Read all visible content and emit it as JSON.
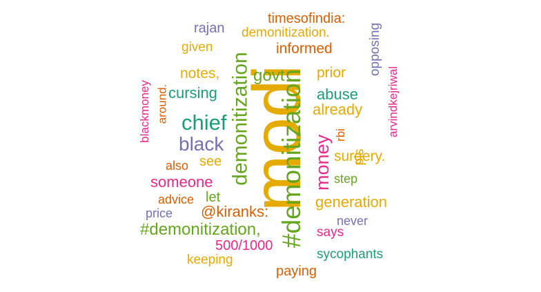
{
  "palette": {
    "teal": "#1b9e77",
    "orange": "#d95f02",
    "purple": "#7570b3",
    "pink": "#e7298a",
    "green": "#66a61e",
    "gold": "#e6ab02"
  },
  "words": [
    {
      "text": "modi",
      "color": "#e6ab02"
    },
    {
      "text": "#demonitization",
      "color": "#66a61e"
    },
    {
      "text": "demonitization",
      "color": "#66a61e"
    },
    {
      "text": "chief",
      "color": "#1b9e77"
    },
    {
      "text": "black",
      "color": "#7570b3"
    },
    {
      "text": "money",
      "color": "#e7298a"
    },
    {
      "text": "#demonitization,",
      "color": "#66a61e"
    },
    {
      "text": "@kiranks:",
      "color": "#d95f02"
    },
    {
      "text": "govt",
      "color": "#66a61e"
    },
    {
      "text": "cursing",
      "color": "#1b9e77"
    },
    {
      "text": "abuse",
      "color": "#1b9e77"
    },
    {
      "text": "already",
      "color": "#e6ab02"
    },
    {
      "text": "someone",
      "color": "#e7298a"
    },
    {
      "text": "generation",
      "color": "#e6ab02"
    },
    {
      "text": "500/1000",
      "color": "#e7298a"
    },
    {
      "text": "informed",
      "color": "#d95f02"
    },
    {
      "text": "prior",
      "color": "#e6ab02"
    },
    {
      "text": "notes,",
      "color": "#e6ab02"
    },
    {
      "text": "timesofindia:",
      "color": "#d95f02"
    },
    {
      "text": "demonitization.",
      "color": "#e6ab02"
    },
    {
      "text": "rajan",
      "color": "#7570b3"
    },
    {
      "text": "given",
      "color": "#e6ab02"
    },
    {
      "text": "opposing",
      "color": "#7570b3"
    },
    {
      "text": "arvindkejriwal",
      "color": "#e7298a"
    },
    {
      "text": "blackmoney",
      "color": "#e7298a"
    },
    {
      "text": "around.",
      "color": "#d95f02"
    },
    {
      "text": "rbi",
      "color": "#d95f02"
    },
    {
      "text": "pls",
      "color": "#e6ab02"
    },
    {
      "text": "surgery.",
      "color": "#e6ab02"
    },
    {
      "text": "also",
      "color": "#d95f02"
    },
    {
      "text": "see",
      "color": "#e6ab02"
    },
    {
      "text": "step",
      "color": "#66a61e"
    },
    {
      "text": "let",
      "color": "#66a61e"
    },
    {
      "text": "advice",
      "color": "#d95f02"
    },
    {
      "text": "price",
      "color": "#7570b3"
    },
    {
      "text": "never",
      "color": "#7570b3"
    },
    {
      "text": "says",
      "color": "#e7298a"
    },
    {
      "text": "keeping",
      "color": "#e6ab02"
    },
    {
      "text": "sycophants",
      "color": "#1b9e77"
    },
    {
      "text": "paying",
      "color": "#d95f02"
    }
  ]
}
